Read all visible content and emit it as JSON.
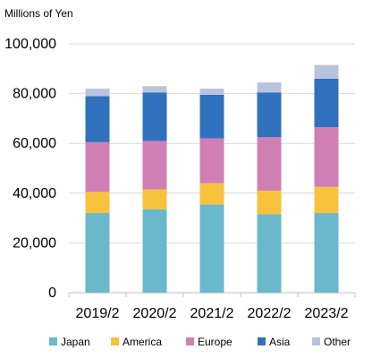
{
  "chart_data": {
    "type": "bar",
    "stacked": true,
    "unit_label": "Millions of Yen",
    "categories": [
      "2019/2",
      "2020/2",
      "2021/2",
      "2022/2",
      "2023/2"
    ],
    "series": [
      {
        "name": "Japan",
        "color": "#6ab8cc",
        "values": [
          32000,
          33500,
          35500,
          31500,
          32000
        ]
      },
      {
        "name": "America",
        "color": "#f9c23c",
        "values": [
          8500,
          8000,
          8500,
          9500,
          10500
        ]
      },
      {
        "name": "Europe",
        "color": "#d07fb5",
        "values": [
          20000,
          19500,
          18000,
          21500,
          24000
        ]
      },
      {
        "name": "Asia",
        "color": "#2f71bd",
        "values": [
          18500,
          19500,
          17500,
          18000,
          19500
        ]
      },
      {
        "name": "Other",
        "color": "#b9c4dc",
        "values": [
          3000,
          2500,
          2500,
          4000,
          5500
        ]
      }
    ],
    "yticks": [
      "0",
      "20,000",
      "40,000",
      "60,000",
      "80,000",
      "100,000"
    ],
    "ytick_values": [
      0,
      20000,
      40000,
      60000,
      80000,
      100000
    ],
    "ylim": [
      0,
      100000
    ],
    "grid": true,
    "legend_position": "bottom"
  }
}
